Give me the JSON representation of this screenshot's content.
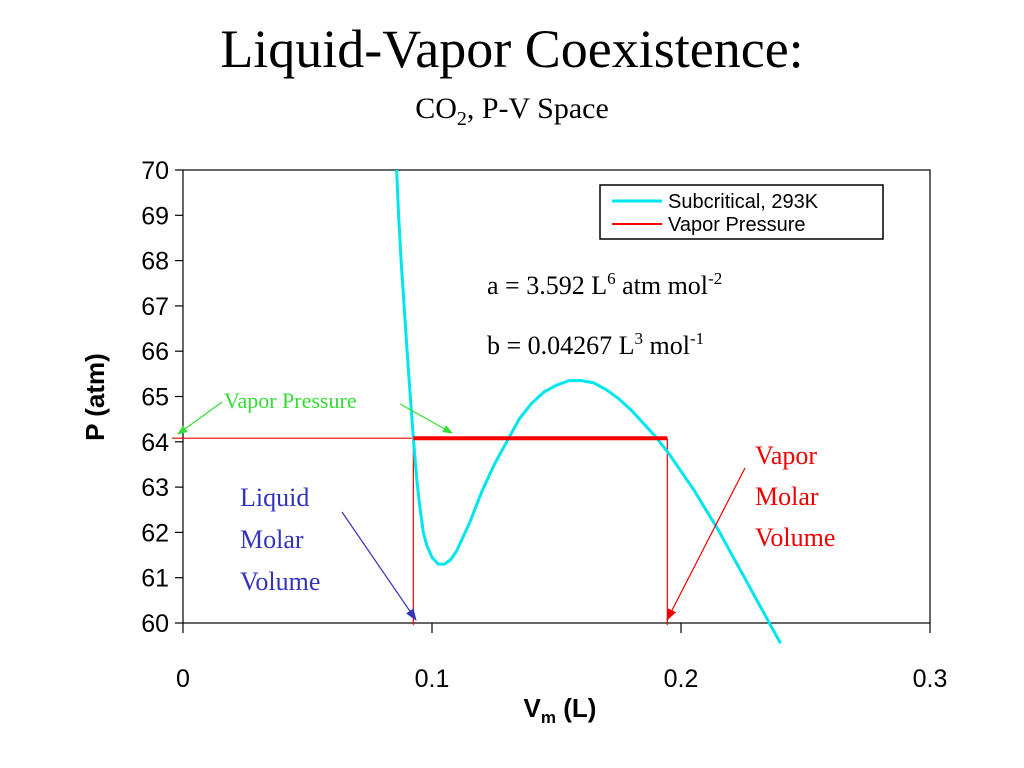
{
  "slide": {
    "title": "Liquid-Vapor Coexistence:",
    "subtitle_main": "CO",
    "subtitle_sub": "2",
    "subtitle_rest": ", P-V Space"
  },
  "chart_data": {
    "type": "line",
    "title": "",
    "xlabel_main": "V",
    "xlabel_sub": "m",
    "xlabel_rest": " (L)",
    "ylabel": "P (atm)",
    "xlim": [
      0,
      0.3
    ],
    "ylim": [
      60,
      70
    ],
    "x_ticks": [
      "0",
      "0.1",
      "0.2",
      "0.3"
    ],
    "y_ticks": [
      "60",
      "61",
      "62",
      "63",
      "64",
      "65",
      "66",
      "67",
      "68",
      "69",
      "70"
    ],
    "grid": false,
    "legend_position": "top-right",
    "colors": {
      "subcritical": "#00e5ee",
      "vapor_pressure": "#ff0000",
      "annotation_green": "#33dd33",
      "annotation_blue": "#3333bb",
      "annotation_red": "#ee0000"
    },
    "series": [
      {
        "name": "Subcritical, 293K",
        "x": [
          0.0858,
          0.0866,
          0.0876,
          0.0888,
          0.09,
          0.0913,
          0.0925,
          0.0938,
          0.095,
          0.0965,
          0.098,
          0.1,
          0.1025,
          0.105,
          0.1075,
          0.11,
          0.1125,
          0.115,
          0.12,
          0.125,
          0.13,
          0.135,
          0.14,
          0.145,
          0.15,
          0.155,
          0.16,
          0.165,
          0.17,
          0.175,
          0.18,
          0.185,
          0.19,
          0.195,
          0.2,
          0.205,
          0.21,
          0.215,
          0.22,
          0.225,
          0.23,
          0.235,
          0.24
        ],
        "y": [
          70.0,
          69.0,
          68.0,
          67.0,
          66.0,
          65.0,
          64.1,
          63.2,
          62.6,
          62.0,
          61.7,
          61.45,
          61.3,
          61.3,
          61.4,
          61.6,
          61.9,
          62.2,
          62.9,
          63.5,
          64.0,
          64.5,
          64.85,
          65.1,
          65.25,
          65.35,
          65.35,
          65.3,
          65.15,
          64.95,
          64.7,
          64.4,
          64.1,
          63.75,
          63.35,
          62.95,
          62.5,
          62.05,
          61.55,
          61.05,
          60.55,
          60.05,
          59.55
        ]
      },
      {
        "name": "Vapor Pressure",
        "x": [
          0.0925,
          0.1945
        ],
        "y": [
          64.08,
          64.08
        ]
      }
    ],
    "drop_lines": {
      "x": [
        0.0925,
        0.1945
      ],
      "p": 64.08
    },
    "annotations": {
      "param_a_text": "a = 3.592 L",
      "param_a_exp1": "6",
      "param_a_unit": " atm mol",
      "param_a_exp2": "-2",
      "param_b_text": "b = 0.04267 L",
      "param_b_exp1": "3",
      "param_b_unit": " mol",
      "param_b_exp2": "-1",
      "vapor_pressure_label": "Vapor Pressure",
      "liquid_label": [
        "Liquid",
        "Molar",
        "Volume"
      ],
      "vapor_label": [
        "Vapor",
        "Molar",
        "Volume"
      ]
    }
  }
}
